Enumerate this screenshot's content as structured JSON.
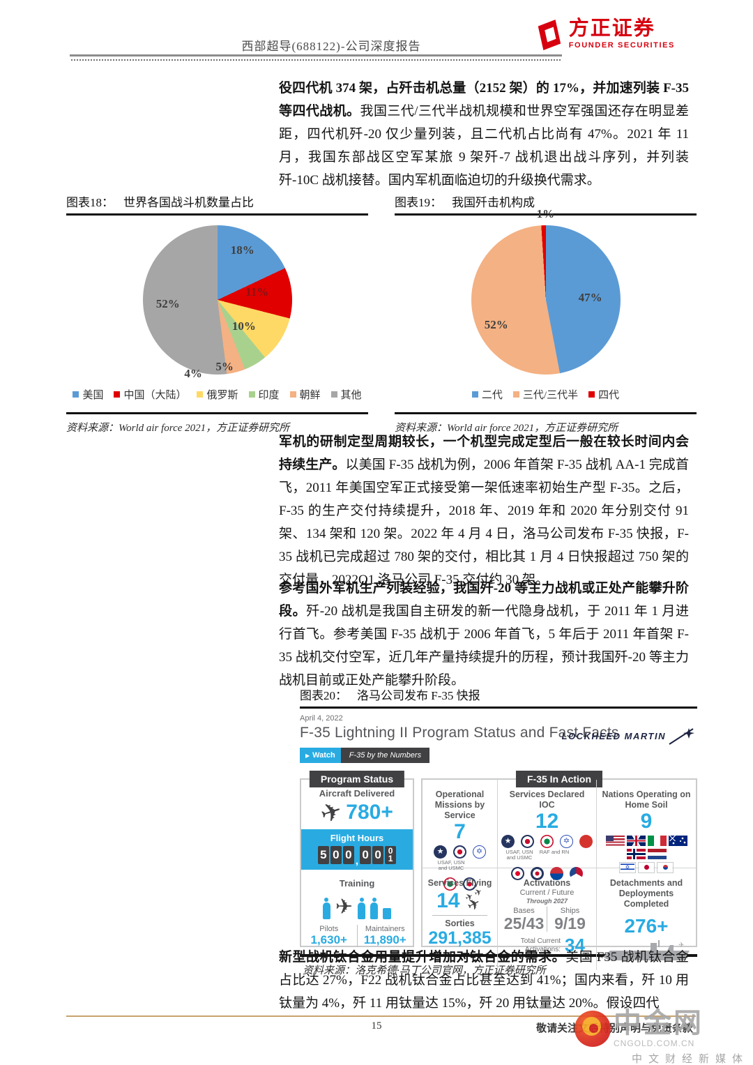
{
  "header": {
    "report_title": "西部超导(688122)-公司深度报告",
    "brand_cn": "方正证券",
    "brand_en": "FOUNDER SECURITIES"
  },
  "body": {
    "p1_bold": "役四代机 374 架，占歼击机总量（2152 架）的 17%，并加速列装 F-35 等四代战机。",
    "p1_rest": "我国三代/三代半战机规模和世界空军强国还存在明显差距，四代机歼-20 仅少量列装，且二代机占比尚有 47%。2021 年 11 月，我国东部战区空军某旅 9 架歼-7 战机退出战斗序列，并列装歼-10C 战机接替。国内军机面临迫切的升级换代需求。",
    "p2_bold": "军机的研制定型周期较长，一个机型完成定型后一般在较长时间内会持续生产。",
    "p2_rest": "以美国 F-35 战机为例，2006 年首架 F-35 战机 AA-1 完成首飞，2011 年美国空军正式接受第一架低速率初始生产型 F-35。之后，F-35 的生产交付持续提升，2018 年、2019 年和 2020 年分别交付 91 架、134 架和 120 架。2022 年 4 月 4 日，洛马公司发布 F-35 快报，F-35 战机已完成超过 780 架的交付，相比其 1 月 4 日快报超过 750 架的交付量，2022Q1 洛马公司 F-35 交付约 30 架。",
    "p3_bold": "参考国外军机生产列装经验，我国歼-20 等主力战机或正处产能攀升阶段。",
    "p3_rest": "歼-20 战机是我国自主研发的新一代隐身战机，于 2011 年 1 月进行首飞。参考美国 F-35 战机于 2006 年首飞，5 年后于 2011 年首架 F-35 战机交付空军，近几年产量持续提升的历程，预计我国歼-20 等主力战机目前或正处产能攀升阶段。",
    "p4_bold": "新型战机钛合金用量提升增加对钛合金的需求。",
    "p4_rest": "美国 F35 战机钛合金占比达 27%，F22 战机钛合金占比甚至达到 41%；国内来看，歼 10 用钛量为 4%，歼 11 用钛量达 15%，歼 20 用钛量达 20%。假设四代"
  },
  "figures": {
    "fig18": {
      "label": "图表18：",
      "title": "世界各国战斗机数量占比",
      "source": "资料来源：World air force 2021，方正证券研究所"
    },
    "fig19": {
      "label": "图表19：",
      "title": "我国歼击机构成",
      "source": "资料来源：World air force 2021，方正证券研究所"
    },
    "fig20": {
      "label": "图表20：",
      "title": "洛马公司发布 F-35 快报",
      "source": "资料来源：洛克希德·马丁公司官网，方正证券研究所"
    }
  },
  "chart_data": [
    {
      "type": "pie",
      "title": "世界各国战斗机数量占比",
      "labels": [
        "美国",
        "中国（大陆）",
        "俄罗斯",
        "印度",
        "朝鲜",
        "其他"
      ],
      "values": [
        18,
        11,
        10,
        5,
        4,
        52
      ],
      "pct_labels": [
        "18%",
        "11%",
        "10%",
        "5%",
        "4%",
        "52%"
      ],
      "colors": [
        "#5B9BD5",
        "#E00000",
        "#FFD965",
        "#A9D18E",
        "#F4B183",
        "#A6A6A6"
      ],
      "start_angle_deg": 0,
      "direction": "clockwise",
      "legend_position": "bottom"
    },
    {
      "type": "pie",
      "title": "我国歼击机构成",
      "labels": [
        "二代",
        "三代/三代半",
        "四代"
      ],
      "values": [
        47,
        52,
        1
      ],
      "pct_labels": [
        "47%",
        "52%",
        "1%"
      ],
      "colors": [
        "#5B9BD5",
        "#F4B183",
        "#E00000"
      ],
      "start_angle_deg": 0,
      "direction": "clockwise",
      "legend_position": "bottom"
    }
  ],
  "infographic": {
    "date": "April 4, 2022",
    "title": "F-35 Lightning II Program Status and Fast Facts",
    "brand": "LOCKHEED MARTIN",
    "watch_button": "Watch",
    "watch_label": "F-35 by the Numbers",
    "program_status": {
      "header": "Program Status",
      "aircraft_delivered_label": "Aircraft Delivered",
      "aircraft_delivered_value": "780+",
      "flight_hours_label": "Flight Hours",
      "flight_hours_digits": [
        "5",
        "0",
        "0",
        ",",
        "0",
        "0",
        "0|1"
      ],
      "training_label": "Training",
      "pilots_label": "Pilots",
      "pilots_value": "1,630+",
      "maintainers_label": "Maintainers",
      "maintainers_value": "11,890+"
    },
    "in_action": {
      "header": "F-35 In Action",
      "missions": {
        "title": "Operational Missions by Service",
        "value": "7",
        "roundels_row1": [
          "roundel-usaf",
          "roundel-raf",
          "roundel-israel"
        ],
        "caption1": "USAF, USN and USMC",
        "roundels_row2": [
          "roundel-italy",
          "roundel-raaf"
        ]
      },
      "ioc": {
        "title": "Services Declared IOC",
        "value": "12",
        "roundels_row1": [
          "roundel-usaf",
          "roundel-raf",
          "roundel-italy",
          "roundel-israel",
          "roundel-japan"
        ],
        "caption1": "USAF, USN and USMC",
        "caption2": "RAF and RN",
        "roundels_row2": [
          "roundel-raaf",
          "roundel-rnzaf",
          "roundel-korea",
          "roundel-netherlands"
        ]
      },
      "nations": {
        "title": "Nations Operating on Home Soil",
        "value": "9",
        "flags_row1": [
          "flag-usa",
          "flag-uk",
          "flag-italy",
          "flag-australia"
        ],
        "flags_row2": [
          "flag-norway",
          "flag-netherlands"
        ],
        "flags_row3": [
          "flag-israel",
          "flag-japan",
          "flag-south-korea"
        ]
      },
      "services_flying": {
        "title": "Services Flying",
        "value": "14",
        "sorties_label": "Sorties",
        "sorties_value": "291,385"
      },
      "activations": {
        "title": "Activations",
        "subtitle": "Current / Future",
        "subtitle2": "Through 2027",
        "bases_label": "Bases",
        "bases_value": "25/43",
        "ships_label": "Ships",
        "ships_value": "9/19",
        "total_label": "Total Current Activations:",
        "total_value": "34"
      },
      "deployments": {
        "title": "Detachments and Deployments Completed",
        "value": "276+"
      }
    }
  },
  "footer": {
    "page_number": "15",
    "disclaimer": "敬请关注文后特别声明与免责条款",
    "watermark": {
      "name": "中金网",
      "domain": "CNGOLD.COM.CN",
      "tagline": "中文财经新媒体"
    }
  }
}
